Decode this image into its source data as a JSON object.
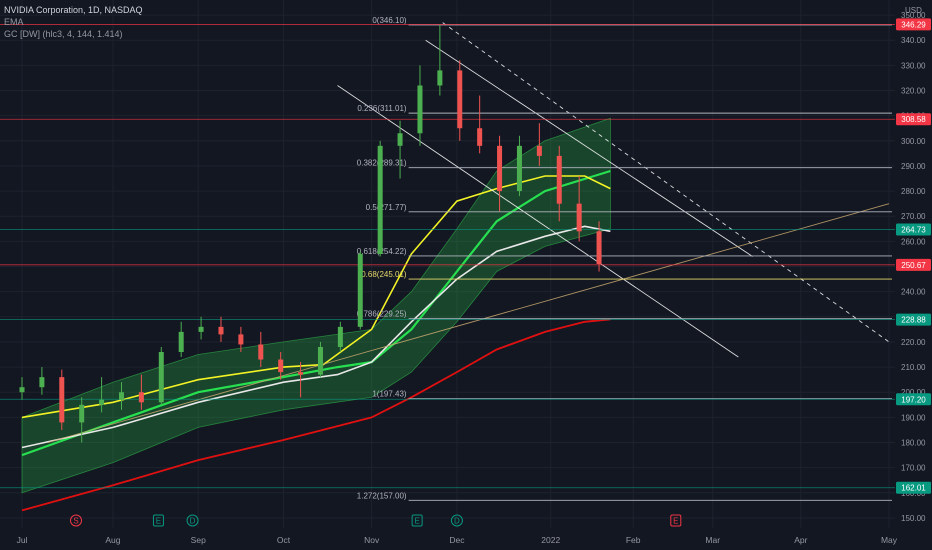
{
  "header": {
    "symbol_line": "NVIDIA Corporation, 1D, NASDAQ",
    "indicator_1": "EMA",
    "indicator_2": "GC [DW] (hlc3, 4, 144, 1.414)",
    "currency": "USD"
  },
  "colors": {
    "background": "#131722",
    "grid": "#1e222d",
    "up": "#4caf50",
    "down": "#ef5350",
    "ema_yellow": "#f3f325",
    "ema_white": "#e8e8e8",
    "ema_red": "#e01010",
    "band_green": "#2ebd4b",
    "fib_line": "#b2b5be",
    "trend_tan": "#c9a96e"
  },
  "chart_data": {
    "type": "candlestick",
    "title": "NVIDIA Corporation, 1D, NASDAQ",
    "y_axis": {
      "ticks": [
        150,
        160,
        170,
        180,
        190,
        200,
        210,
        220,
        230,
        240,
        250,
        260,
        270,
        280,
        290,
        300,
        310,
        320,
        330,
        340,
        350
      ],
      "tick_labels": [
        "150.00",
        "160.00",
        "170.00",
        "180.00",
        "190.00",
        "200.00",
        "210.00",
        "220.00",
        "230.00",
        "240.00",
        "250.00",
        "260.00",
        "270.00",
        "280.00",
        "290.00",
        "300.00",
        "310.00",
        "320.00",
        "330.00",
        "340.00",
        "350.00"
      ],
      "range": [
        146,
        356
      ]
    },
    "x_axis": {
      "labels": [
        {
          "text": "Jul",
          "date": "2021-07-01"
        },
        {
          "text": "Aug",
          "date": "2021-08-02"
        },
        {
          "text": "Sep",
          "date": "2021-09-01"
        },
        {
          "text": "Oct",
          "date": "2021-10-01"
        },
        {
          "text": "Nov",
          "date": "2021-11-01"
        },
        {
          "text": "Dec",
          "date": "2021-12-01"
        },
        {
          "text": "2022",
          "date": "2022-01-03"
        },
        {
          "text": "Feb",
          "date": "2022-02-01"
        },
        {
          "text": "Mar",
          "date": "2022-03-01"
        },
        {
          "text": "Apr",
          "date": "2022-04-01"
        },
        {
          "text": "May",
          "date": "2022-05-02"
        }
      ]
    },
    "price_tags": [
      {
        "value": 346.29,
        "label": "346.29",
        "color": "#f23645"
      },
      {
        "value": 308.58,
        "label": "308.58",
        "color": "#f23645"
      },
      {
        "value": 264.73,
        "label": "264.73",
        "color": "#089981"
      },
      {
        "value": 250.67,
        "label": "250.67",
        "color": "#f23645"
      },
      {
        "value": 228.88,
        "label": "228.88",
        "color": "#089981"
      },
      {
        "value": 197.2,
        "label": "197.20",
        "color": "#089981"
      },
      {
        "value": 162.01,
        "label": "162.01",
        "color": "#089981"
      }
    ],
    "fib_levels": [
      {
        "value": 346.1,
        "label": "0(346.10)",
        "color": "#b2b5be"
      },
      {
        "value": 311.01,
        "label": "0.236(311.01)",
        "color": "#b2b5be"
      },
      {
        "value": 289.31,
        "label": "0.382(289.31)",
        "color": "#b2b5be"
      },
      {
        "value": 271.77,
        "label": "0.5(271.77)",
        "color": "#b2b5be"
      },
      {
        "value": 254.22,
        "label": "0.618(254.22)",
        "color": "#b2b5be"
      },
      {
        "value": 245.01,
        "label": "0.68(245.01)",
        "color": "#e6d96b"
      },
      {
        "value": 229.25,
        "label": "0.786(229.25)",
        "color": "#b2b5be"
      },
      {
        "value": 197.43,
        "label": "1(197.43)",
        "color": "#b2b5be"
      },
      {
        "value": 157.0,
        "label": "1.272(157.00)",
        "color": "#b2b5be"
      }
    ],
    "candles": [
      {
        "date": "2021-07-01",
        "o": 200,
        "h": 206,
        "l": 197,
        "c": 202
      },
      {
        "date": "2021-07-08",
        "o": 202,
        "h": 210,
        "l": 199,
        "c": 206
      },
      {
        "date": "2021-07-15",
        "o": 206,
        "h": 209,
        "l": 185,
        "c": 188
      },
      {
        "date": "2021-07-22",
        "o": 188,
        "h": 198,
        "l": 180,
        "c": 195
      },
      {
        "date": "2021-07-29",
        "o": 195,
        "h": 206,
        "l": 192,
        "c": 197
      },
      {
        "date": "2021-08-05",
        "o": 197,
        "h": 204,
        "l": 193,
        "c": 200
      },
      {
        "date": "2021-08-12",
        "o": 200,
        "h": 207,
        "l": 193,
        "c": 196
      },
      {
        "date": "2021-08-19",
        "o": 196,
        "h": 218,
        "l": 195,
        "c": 216
      },
      {
        "date": "2021-08-26",
        "o": 216,
        "h": 228,
        "l": 214,
        "c": 224
      },
      {
        "date": "2021-09-02",
        "o": 224,
        "h": 230,
        "l": 221,
        "c": 226
      },
      {
        "date": "2021-09-09",
        "o": 226,
        "h": 230,
        "l": 220,
        "c": 223
      },
      {
        "date": "2021-09-16",
        "o": 223,
        "h": 226,
        "l": 216,
        "c": 219
      },
      {
        "date": "2021-09-23",
        "o": 219,
        "h": 224,
        "l": 210,
        "c": 213
      },
      {
        "date": "2021-09-30",
        "o": 213,
        "h": 216,
        "l": 205,
        "c": 208
      },
      {
        "date": "2021-10-07",
        "o": 208,
        "h": 212,
        "l": 198,
        "c": 207
      },
      {
        "date": "2021-10-14",
        "o": 207,
        "h": 220,
        "l": 206,
        "c": 218
      },
      {
        "date": "2021-10-21",
        "o": 218,
        "h": 228,
        "l": 216,
        "c": 226
      },
      {
        "date": "2021-10-28",
        "o": 226,
        "h": 256,
        "l": 225,
        "c": 255
      },
      {
        "date": "2021-11-04",
        "o": 255,
        "h": 300,
        "l": 254,
        "c": 298
      },
      {
        "date": "2021-11-11",
        "o": 298,
        "h": 308,
        "l": 285,
        "c": 303
      },
      {
        "date": "2021-11-18",
        "o": 303,
        "h": 330,
        "l": 298,
        "c": 322
      },
      {
        "date": "2021-11-25",
        "o": 322,
        "h": 346,
        "l": 318,
        "c": 328
      },
      {
        "date": "2021-12-02",
        "o": 328,
        "h": 332,
        "l": 300,
        "c": 305
      },
      {
        "date": "2021-12-09",
        "o": 305,
        "h": 318,
        "l": 295,
        "c": 298
      },
      {
        "date": "2021-12-16",
        "o": 298,
        "h": 302,
        "l": 272,
        "c": 280
      },
      {
        "date": "2021-12-23",
        "o": 280,
        "h": 302,
        "l": 278,
        "c": 298
      },
      {
        "date": "2021-12-30",
        "o": 298,
        "h": 307,
        "l": 290,
        "c": 294
      },
      {
        "date": "2022-01-06",
        "o": 294,
        "h": 298,
        "l": 268,
        "c": 275
      },
      {
        "date": "2022-01-13",
        "o": 275,
        "h": 286,
        "l": 260,
        "c": 264
      },
      {
        "date": "2022-01-20",
        "o": 264,
        "h": 268,
        "l": 248,
        "c": 251
      }
    ],
    "trend_lines": [
      {
        "name": "upper-dashed",
        "x0": "2021-11-26",
        "y0": 347,
        "x1": "2022-05-02",
        "y1": 220,
        "style": "dashed",
        "color": "#ffffff"
      },
      {
        "name": "channel-upper",
        "x0": "2021-11-20",
        "y0": 340,
        "x1": "2022-03-15",
        "y1": 254,
        "style": "solid",
        "color": "#ffffff"
      },
      {
        "name": "channel-lower",
        "x0": "2021-10-20",
        "y0": 322,
        "x1": "2022-03-10",
        "y1": 214,
        "style": "solid",
        "color": "#ffffff"
      },
      {
        "name": "support-tan",
        "x0": "2021-07-10",
        "y0": 180,
        "x1": "2022-05-02",
        "y1": 275,
        "style": "solid",
        "color": "#c9a96e"
      }
    ],
    "ema_white": [
      {
        "date": "2021-07-01",
        "v": 178
      },
      {
        "date": "2021-08-02",
        "v": 186
      },
      {
        "date": "2021-09-01",
        "v": 196
      },
      {
        "date": "2021-10-01",
        "v": 204
      },
      {
        "date": "2021-10-20",
        "v": 207
      },
      {
        "date": "2021-11-01",
        "v": 212
      },
      {
        "date": "2021-11-15",
        "v": 228
      },
      {
        "date": "2021-12-01",
        "v": 245
      },
      {
        "date": "2021-12-15",
        "v": 256
      },
      {
        "date": "2022-01-01",
        "v": 262
      },
      {
        "date": "2022-01-15",
        "v": 266
      },
      {
        "date": "2022-01-24",
        "v": 264
      }
    ],
    "ema_yellow": [
      {
        "date": "2021-07-01",
        "v": 190
      },
      {
        "date": "2021-08-02",
        "v": 196
      },
      {
        "date": "2021-09-01",
        "v": 205
      },
      {
        "date": "2021-10-01",
        "v": 210
      },
      {
        "date": "2021-10-15",
        "v": 211
      },
      {
        "date": "2021-11-01",
        "v": 225
      },
      {
        "date": "2021-11-15",
        "v": 255
      },
      {
        "date": "2021-12-01",
        "v": 276
      },
      {
        "date": "2021-12-15",
        "v": 281
      },
      {
        "date": "2022-01-01",
        "v": 286
      },
      {
        "date": "2022-01-15",
        "v": 286
      },
      {
        "date": "2022-01-24",
        "v": 281
      }
    ],
    "ema_red": [
      {
        "date": "2021-07-01",
        "v": 153
      },
      {
        "date": "2021-08-02",
        "v": 163
      },
      {
        "date": "2021-09-01",
        "v": 173
      },
      {
        "date": "2021-10-01",
        "v": 181
      },
      {
        "date": "2021-11-01",
        "v": 190
      },
      {
        "date": "2021-11-15",
        "v": 198
      },
      {
        "date": "2021-12-01",
        "v": 208
      },
      {
        "date": "2021-12-15",
        "v": 217
      },
      {
        "date": "2022-01-01",
        "v": 224
      },
      {
        "date": "2022-01-15",
        "v": 228
      },
      {
        "date": "2022-01-24",
        "v": 229
      }
    ],
    "band_mid": [
      {
        "date": "2021-07-01",
        "v": 175
      },
      {
        "date": "2021-08-02",
        "v": 188
      },
      {
        "date": "2021-09-01",
        "v": 200
      },
      {
        "date": "2021-10-01",
        "v": 206
      },
      {
        "date": "2021-10-20",
        "v": 210
      },
      {
        "date": "2021-11-01",
        "v": 212
      },
      {
        "date": "2021-11-15",
        "v": 225
      },
      {
        "date": "2021-12-01",
        "v": 248
      },
      {
        "date": "2021-12-15",
        "v": 268
      },
      {
        "date": "2022-01-01",
        "v": 280
      },
      {
        "date": "2022-01-24",
        "v": 288
      }
    ],
    "band_upper": [
      {
        "date": "2021-07-01",
        "v": 190
      },
      {
        "date": "2021-08-02",
        "v": 204
      },
      {
        "date": "2021-09-01",
        "v": 215
      },
      {
        "date": "2021-10-01",
        "v": 220
      },
      {
        "date": "2021-11-01",
        "v": 225
      },
      {
        "date": "2021-11-15",
        "v": 240
      },
      {
        "date": "2021-12-01",
        "v": 265
      },
      {
        "date": "2021-12-15",
        "v": 288
      },
      {
        "date": "2022-01-01",
        "v": 300
      },
      {
        "date": "2022-01-24",
        "v": 309
      }
    ],
    "band_lower": [
      {
        "date": "2021-07-01",
        "v": 160
      },
      {
        "date": "2021-08-02",
        "v": 172
      },
      {
        "date": "2021-09-01",
        "v": 186
      },
      {
        "date": "2021-10-01",
        "v": 193
      },
      {
        "date": "2021-11-01",
        "v": 198
      },
      {
        "date": "2021-11-15",
        "v": 208
      },
      {
        "date": "2021-12-01",
        "v": 228
      },
      {
        "date": "2021-12-15",
        "v": 248
      },
      {
        "date": "2022-01-01",
        "v": 258
      },
      {
        "date": "2022-01-24",
        "v": 265
      }
    ],
    "events": [
      {
        "date": "2021-07-20",
        "letter": "S",
        "color": "#f23645"
      },
      {
        "date": "2021-08-18",
        "letter": "E",
        "color": "#089981"
      },
      {
        "date": "2021-08-30",
        "letter": "D",
        "color": "#089981"
      },
      {
        "date": "2021-11-17",
        "letter": "E",
        "color": "#089981"
      },
      {
        "date": "2021-12-01",
        "letter": "D",
        "color": "#089981"
      },
      {
        "date": "2022-02-16",
        "letter": "E",
        "color": "#f23645"
      }
    ]
  }
}
